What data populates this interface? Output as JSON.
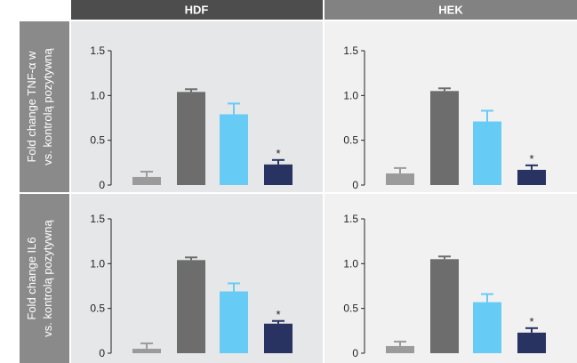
{
  "columns": [
    {
      "label": "HDF",
      "header_color": "#4d4d4d",
      "panel_color": "#e6e7e8"
    },
    {
      "label": "HEK",
      "header_color": "#828282",
      "panel_color": "#f1f1f2"
    }
  ],
  "rows": [
    {
      "label_line1": "Fold change TNF-α w",
      "label_line2": "vs.  kontrolą pozytywną",
      "band_color": "#8a8a8a"
    },
    {
      "label_line1": "Fold change IL6",
      "label_line2": "vs. kontrolą pozytywną",
      "band_color": "#8a8a8a"
    }
  ],
  "bar_colors": [
    "#9b9b9b",
    "#6d6d6d",
    "#66ccf6",
    "#293361"
  ],
  "chart_data": [
    {
      "type": "bar",
      "panel": "TNF-α / HDF",
      "ylim": [
        0,
        1.5
      ],
      "yticks": [
        "0",
        "0.5",
        "1.0",
        "1.5"
      ],
      "values": [
        0.09,
        1.04,
        0.79,
        0.23
      ],
      "errors": [
        0.06,
        0.03,
        0.12,
        0.05
      ],
      "annotations": [
        "",
        "",
        "",
        "*"
      ]
    },
    {
      "type": "bar",
      "panel": "TNF-α / HEK",
      "ylim": [
        0,
        1.5
      ],
      "yticks": [
        "0",
        "0.5",
        "1.0",
        "1.5"
      ],
      "values": [
        0.13,
        1.05,
        0.71,
        0.17
      ],
      "errors": [
        0.06,
        0.03,
        0.12,
        0.05
      ],
      "annotations": [
        "",
        "",
        "",
        "*"
      ]
    },
    {
      "type": "bar",
      "panel": "IL6 / HDF",
      "ylim": [
        0,
        1.5
      ],
      "yticks": [
        "0",
        "0.5",
        "1.0",
        "1.5"
      ],
      "values": [
        0.05,
        1.04,
        0.69,
        0.33
      ],
      "errors": [
        0.06,
        0.03,
        0.09,
        0.03
      ],
      "annotations": [
        "",
        "",
        "",
        "*"
      ]
    },
    {
      "type": "bar",
      "panel": "IL6 / HEK",
      "ylim": [
        0,
        1.5
      ],
      "yticks": [
        "0",
        "0.5",
        "1.0",
        "1.5"
      ],
      "values": [
        0.08,
        1.05,
        0.57,
        0.23
      ],
      "errors": [
        0.05,
        0.03,
        0.09,
        0.05
      ],
      "annotations": [
        "",
        "",
        "",
        "*"
      ]
    }
  ]
}
